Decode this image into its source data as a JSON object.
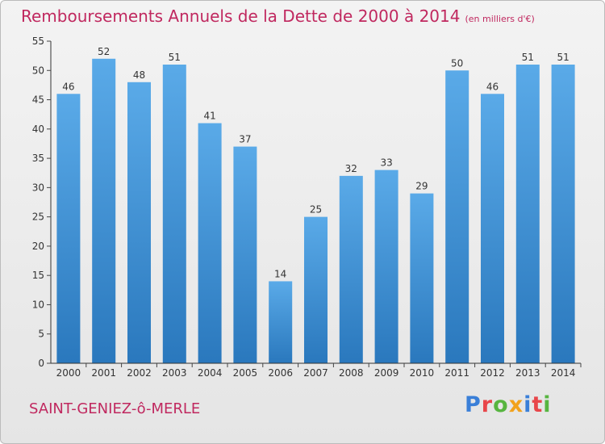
{
  "title": "Remboursements Annuels de la Dette de 2000 à 2014",
  "subtitle": "(en milliers d'€)",
  "commune": "SAINT-GENIEZ-ô-MERLE",
  "logo": [
    "P",
    "r",
    "o",
    "x",
    "i",
    "t",
    "i"
  ],
  "colors": {
    "title": "#c0285f",
    "bar_light": "#5aaae8",
    "bar_dark": "#2a78bd",
    "axis": "#333333",
    "grid_tick": "#444444"
  },
  "chart_data": {
    "type": "bar",
    "categories": [
      "2000",
      "2001",
      "2002",
      "2003",
      "2004",
      "2005",
      "2006",
      "2007",
      "2008",
      "2009",
      "2010",
      "2011",
      "2012",
      "2013",
      "2014"
    ],
    "values": [
      46,
      52,
      48,
      51,
      41,
      37,
      14,
      25,
      32,
      33,
      29,
      50,
      46,
      51,
      51
    ],
    "title": "Remboursements Annuels de la Dette de 2000 à 2014",
    "xlabel": "",
    "ylabel": "",
    "ylim": [
      0,
      55
    ],
    "yticks": [
      0,
      5,
      10,
      15,
      20,
      25,
      30,
      35,
      40,
      45,
      50,
      55
    ],
    "grid": false,
    "data_labels": true
  }
}
